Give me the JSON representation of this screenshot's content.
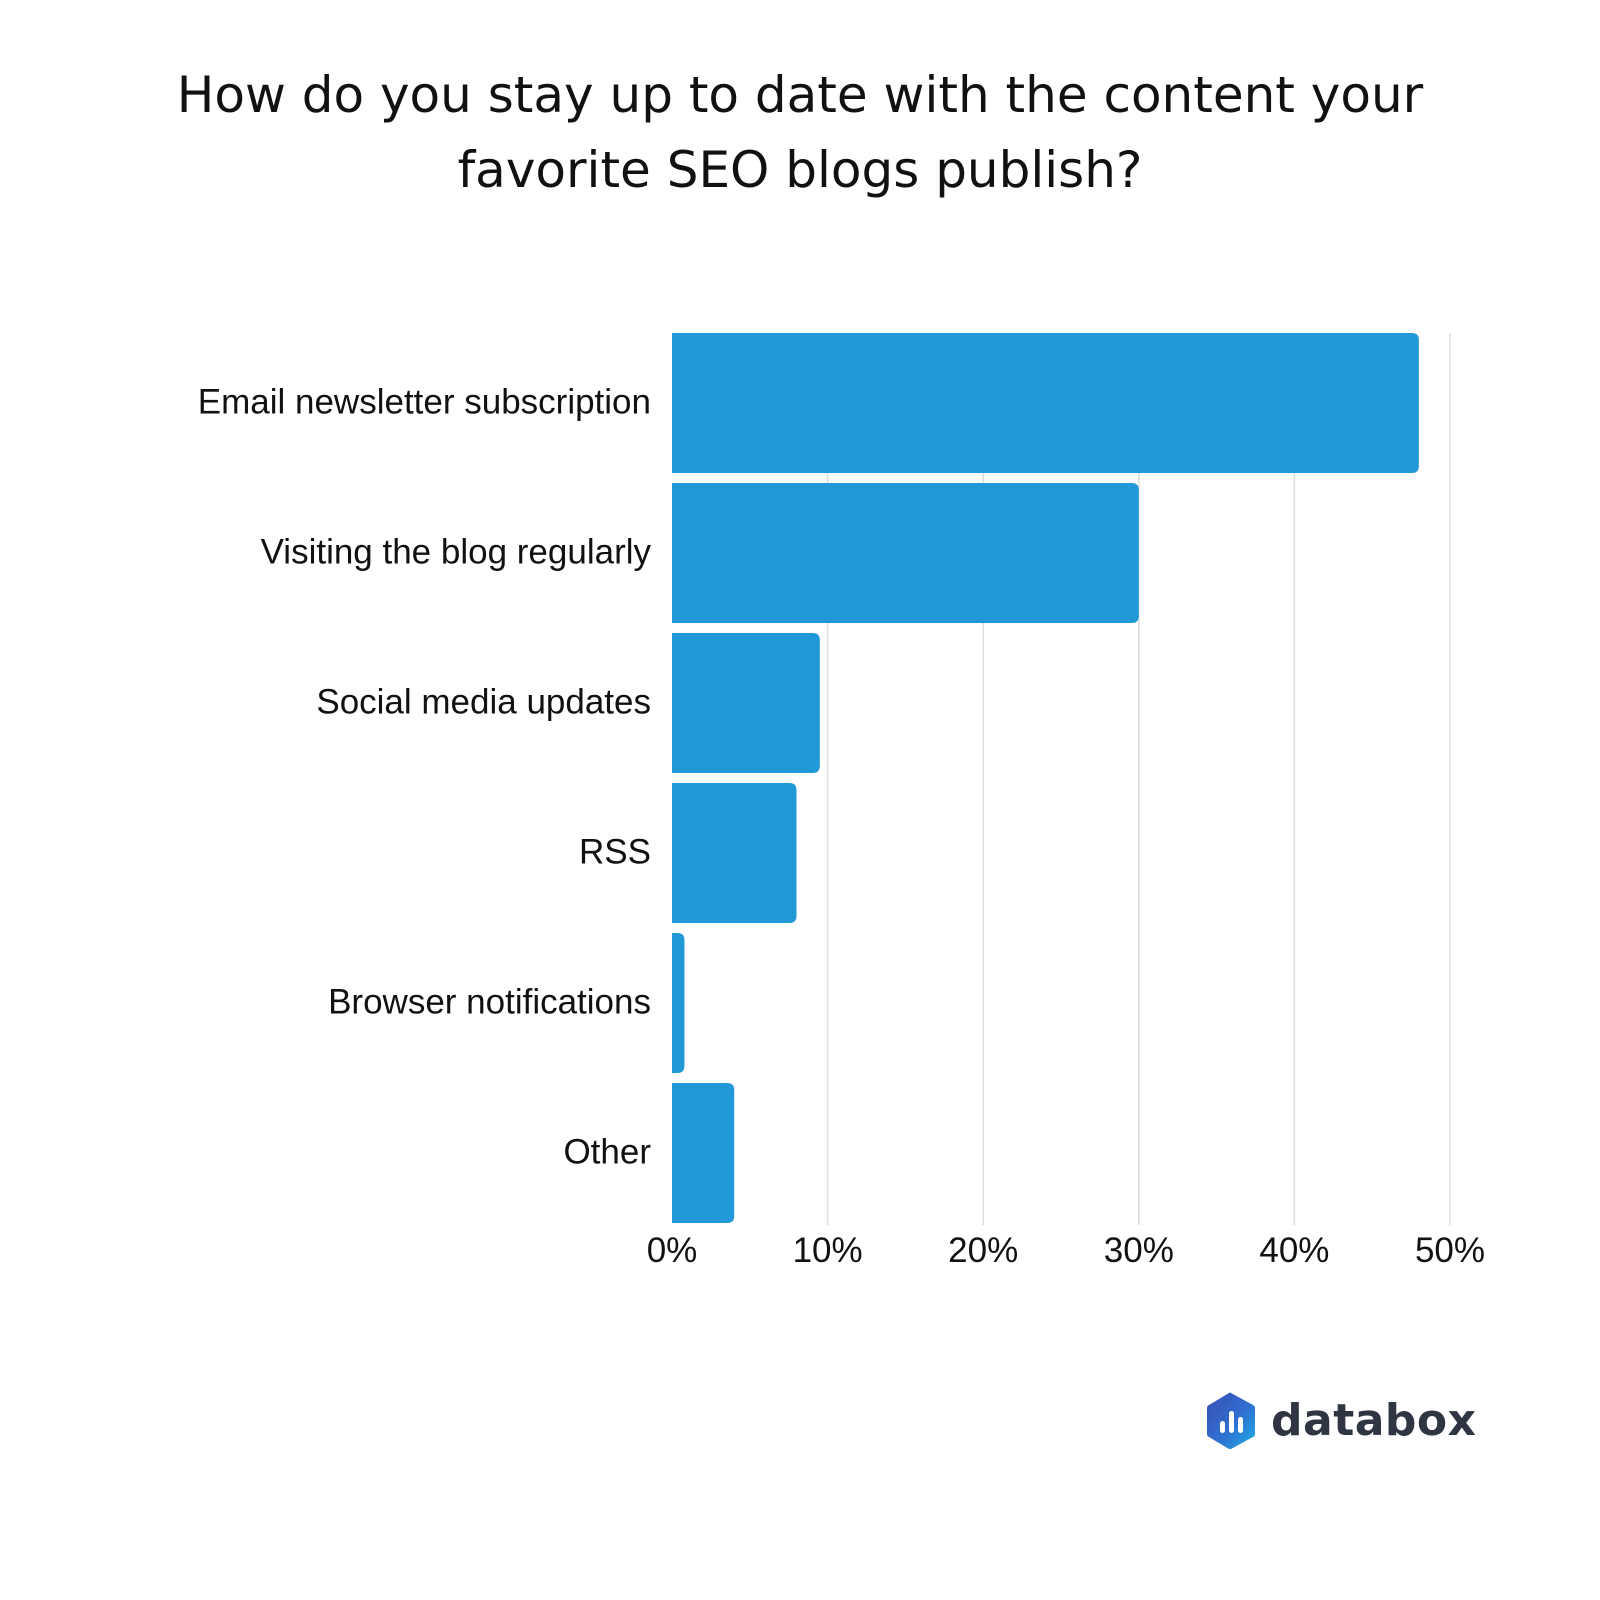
{
  "chart_data": {
    "type": "bar",
    "orientation": "horizontal",
    "title": "How do you stay up to date with the content your favorite SEO blogs publish?",
    "title_lines": [
      "How do you stay up to date with the content your",
      "favorite SEO blogs publish?"
    ],
    "categories": [
      "Email newsletter subscription",
      "Visiting the blog regularly",
      "Social media updates",
      "RSS",
      "Browser notifications",
      "Other"
    ],
    "values": [
      48,
      30,
      9.5,
      8,
      0.8,
      4
    ],
    "unit": "%",
    "xlim": [
      0,
      50
    ],
    "ticks": [
      0,
      10,
      20,
      30,
      40,
      50
    ],
    "tick_labels": [
      "0%",
      "10%",
      "20%",
      "30%",
      "40%",
      "50%"
    ],
    "xlabel": "",
    "ylabel": "",
    "grid": true,
    "legend": "none",
    "bar_color": "#2199d6",
    "grid_color": "#dddddd"
  },
  "brand": {
    "name": "databox",
    "logo_icon": "databox-hexagon-logo-icon"
  }
}
